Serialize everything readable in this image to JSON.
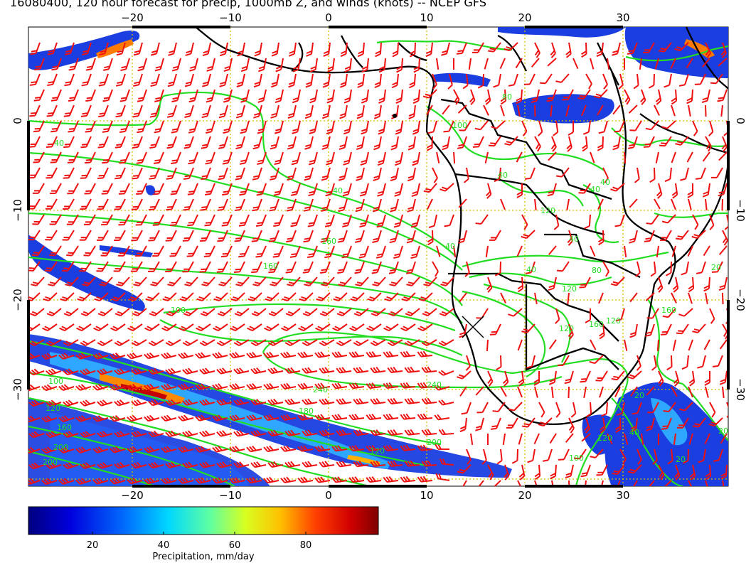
{
  "title": "16080400, 120 hour forecast for precip, 1000mb Z, and winds (knots) -- NCEP GFS",
  "map": {
    "lon_ticks": [
      "−20",
      "−10",
      "0",
      "10",
      "20",
      "30"
    ],
    "lat_ticks": [
      "0",
      "−10",
      "−20",
      "−30"
    ],
    "contour_labels": [
      "40",
      "40",
      "160",
      "160",
      "100",
      "100",
      "120",
      "160",
      "200",
      "200",
      "240",
      "240",
      "180",
      "200",
      "120",
      "100",
      "80",
      "40",
      "40",
      "40",
      "80",
      "120",
      "120",
      "160",
      "160",
      "120",
      "100",
      "120",
      "40",
      "20",
      "20",
      "20",
      "20",
      "40",
      "40",
      "120",
      "40"
    ],
    "contour_color": "#22dd22",
    "barb_color": "#ee1111",
    "coast_color": "#000000",
    "grid_color": "#d4c000"
  },
  "colorbar": {
    "ticks": [
      "20",
      "40",
      "60",
      "80"
    ],
    "title": "Precipitation, mm/day",
    "range": [
      0,
      98
    ]
  }
}
